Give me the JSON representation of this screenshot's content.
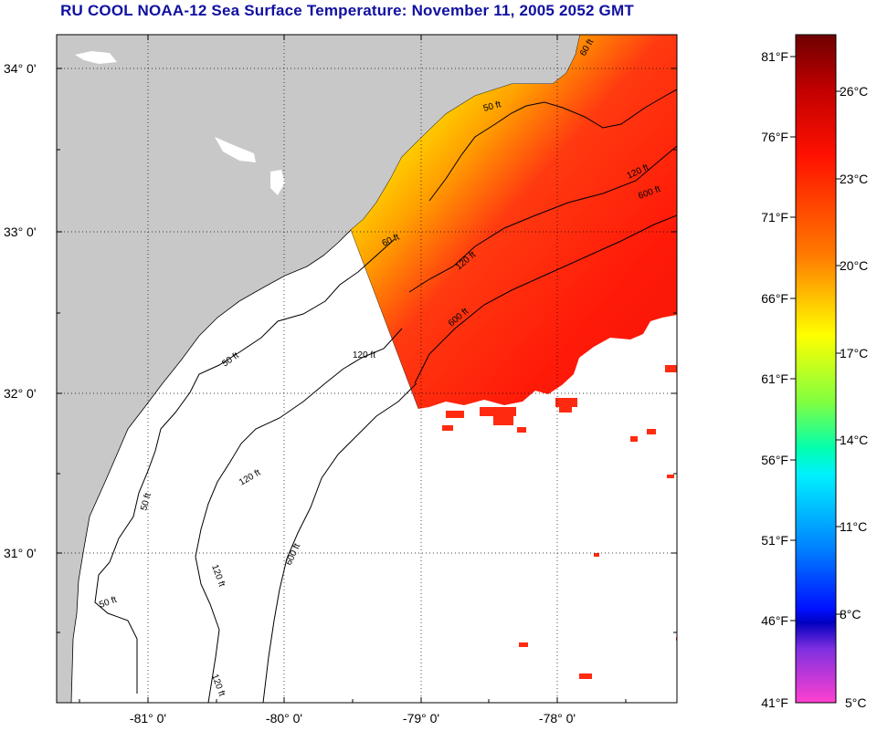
{
  "title": "RU COOL  NOAA-12  Sea Surface Temperature:  November 11, 2005 2052 GMT",
  "colors": {
    "land": "#c8c8c8",
    "contour": "#000000",
    "title": "#1010a0"
  },
  "map": {
    "lat_labels": [
      "34° 0'",
      "33° 0'",
      "32° 0'",
      "31° 0'"
    ],
    "lon_labels": [
      "-81° 0'",
      "-80° 0'",
      "-79° 0'",
      "-78° 0'"
    ],
    "contour_labels": [
      "50 ft",
      "120 ft",
      "600 ft",
      "60 ft",
      "120 ft",
      "600 ft",
      "120 ft",
      "50 ft",
      "120 ft",
      "50 ft",
      "600 ft",
      "120 ft",
      "50 ft",
      "60 ft",
      "120 ft"
    ]
  },
  "colorbar": {
    "fahrenheit_labels": [
      "81°F",
      "76°F",
      "71°F",
      "66°F",
      "61°F",
      "56°F",
      "51°F",
      "46°F",
      "41°F"
    ],
    "celsius_labels": [
      "26°C",
      "23°C",
      "20°C",
      "17°C",
      "14°C",
      "11°C",
      "8°C",
      "5°C"
    ]
  }
}
